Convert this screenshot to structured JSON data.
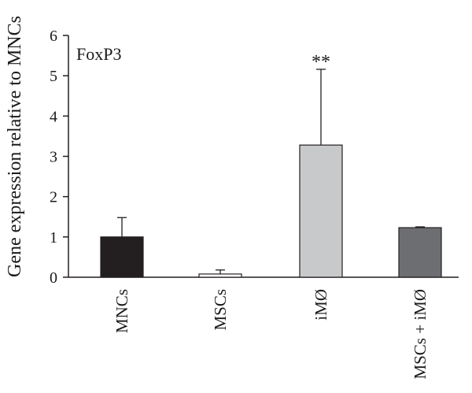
{
  "chart_data": {
    "type": "bar",
    "title": "FoxP3",
    "ylabel": "Gene expression relative to MNCs",
    "xlabel": "",
    "ylim": [
      0,
      6
    ],
    "yticks": [
      0,
      1,
      2,
      3,
      4,
      5,
      6
    ],
    "categories": [
      "MNCs",
      "MSCs",
      "iMØ",
      "MSCs + iMØ"
    ],
    "values": [
      1.0,
      0.08,
      3.28,
      1.23
    ],
    "errors": [
      0.48,
      0.1,
      1.88,
      0.02
    ],
    "bar_colors": [
      "#231f20",
      "#ffffff",
      "#c8c9cb",
      "#6d6e71"
    ],
    "annotations": [
      {
        "category": "iMØ",
        "text": "**"
      }
    ],
    "grid": false,
    "legend": "none"
  }
}
